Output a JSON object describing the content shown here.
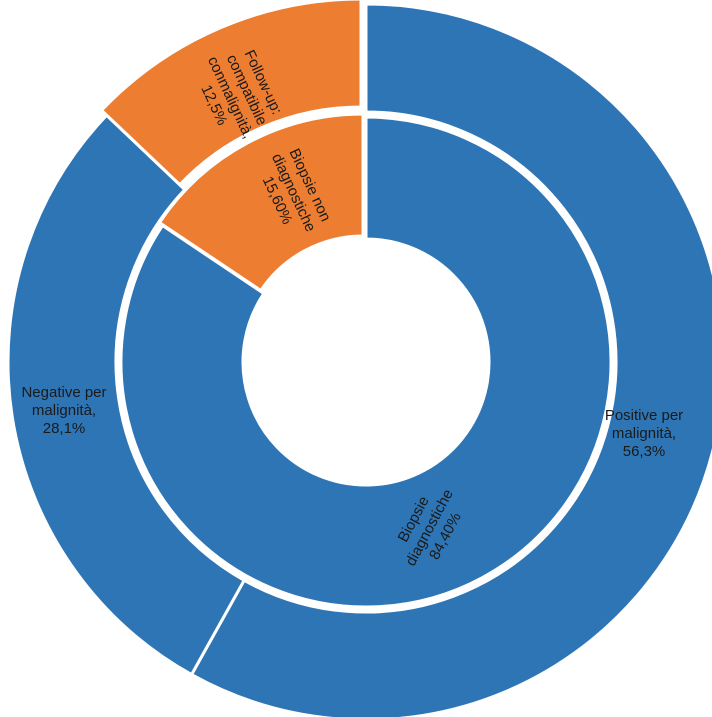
{
  "chart_data": {
    "type": "sunburst",
    "title": "",
    "inner_ring": [
      {
        "name": "Biopsie diagnostiche",
        "value": 84.4,
        "label_lines": [
          "Biopsie",
          "diagnostiche",
          "84,40%"
        ],
        "color": "#2e75b6"
      },
      {
        "name": "Biopsie non diagnostiche",
        "value": 15.6,
        "label_lines": [
          "Biopsie non",
          "diagnostiche",
          "15,60%"
        ],
        "color": "#ed7d31"
      }
    ],
    "outer_ring": [
      {
        "name": "Positive per malignità",
        "parent": "Biopsie diagnostiche",
        "value": 56.3,
        "label_lines": [
          "Positive per",
          "malignità,",
          "56,3%"
        ],
        "color": "#2e75b6"
      },
      {
        "name": "Negative per malignità",
        "parent": "Biopsie diagnostiche",
        "value": 28.1,
        "label_lines": [
          "Negative per",
          "malignità,",
          "28,1%"
        ],
        "color": "#2e75b6"
      },
      {
        "name": "Follow-up: compatibile conmalignità",
        "parent": "Biopsie non diagnostiche",
        "value": 12.5,
        "label_lines": [
          "Follow-up:",
          "compatibile",
          "conmalignità,",
          "12,5%"
        ],
        "color": "#ed7d31"
      }
    ]
  }
}
